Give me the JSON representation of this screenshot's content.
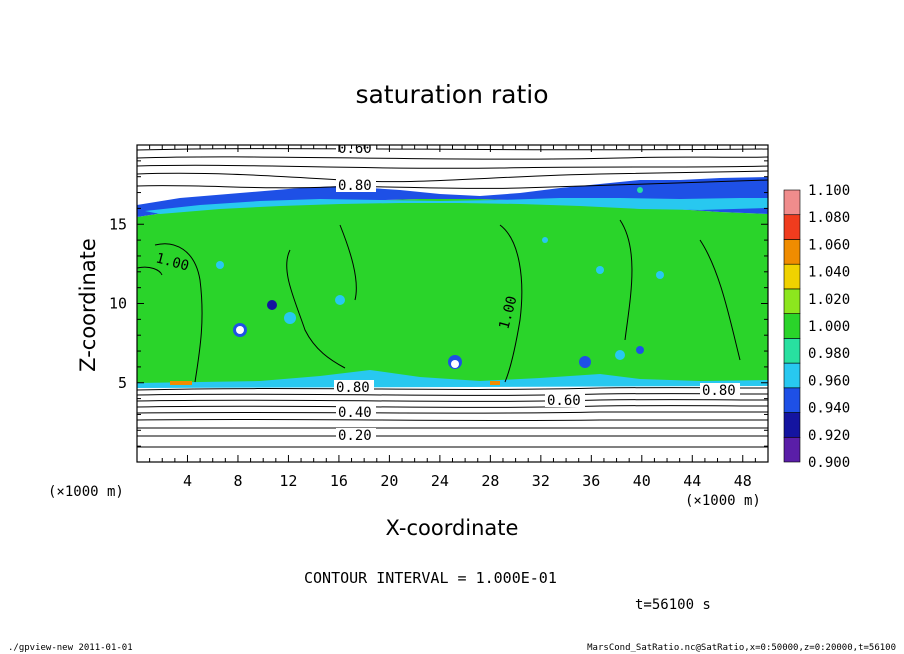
{
  "chart_data": {
    "type": "heatmap",
    "title": "saturation ratio",
    "xlabel": "X-coordinate",
    "ylabel": "Z-coordinate",
    "x_unit": "(×1000 m)",
    "z_unit": "(×1000 m)",
    "xlim": [
      0,
      50
    ],
    "ylim": [
      0,
      20
    ],
    "x_ticks": [
      "4",
      "8",
      "12",
      "16",
      "20",
      "24",
      "28",
      "32",
      "36",
      "40",
      "44",
      "48"
    ],
    "y_ticks": [
      "5",
      "10",
      "15"
    ],
    "colorbar": {
      "levels": [
        "0.900",
        "0.920",
        "0.940",
        "0.960",
        "0.980",
        "1.000",
        "1.020",
        "1.040",
        "1.060",
        "1.080",
        "1.100"
      ],
      "colors": [
        "#5a1ea8",
        "#1414a0",
        "#1e50e6",
        "#28c8f0",
        "#28e0a0",
        "#2ad42a",
        "#8ce61e",
        "#f0d200",
        "#f08c00",
        "#f03c1e",
        "#f08c8c"
      ]
    },
    "contour_labels": [
      "0.60",
      "0.80",
      "1.00",
      "0.80",
      "0.60",
      "0.80",
      "0.40",
      "0.20",
      "1.00"
    ],
    "contour_interval": "CONTOUR INTERVAL = 1.000E-01",
    "time": "t=56100 s"
  },
  "footer": {
    "left": "./gpview-new   2011-01-01",
    "right": "MarsCond_SatRatio.nc@SatRatio,x=0:50000,z=0:20000,t=56100"
  }
}
